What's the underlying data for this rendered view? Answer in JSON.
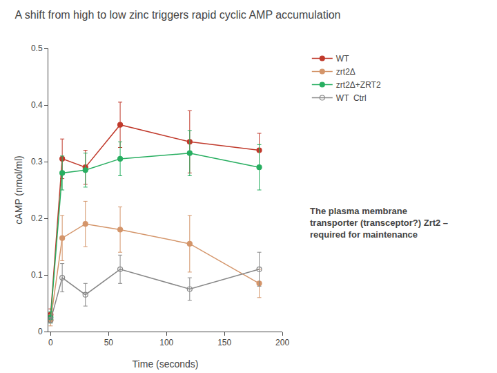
{
  "chart_data": {
    "type": "line",
    "title": "A shift from high to low zinc triggers rapid cyclic AMP accumulation",
    "x_label": "Time (seconds)",
    "y_label": "cAMP (nmol/ml)",
    "x": [
      0,
      10,
      30,
      60,
      120,
      180
    ],
    "xlim": [
      -2,
      200
    ],
    "xticks": [
      0,
      50,
      100,
      150,
      200
    ],
    "ylim": [
      0.0,
      0.5
    ],
    "yticks": [
      0.0,
      0.1,
      0.2,
      0.3,
      0.4,
      0.5
    ],
    "grid": false,
    "legend": "upper right",
    "series": [
      {
        "name": "WT",
        "color": "#c0392b",
        "marker": "circle",
        "values": [
          0.03,
          0.305,
          0.29,
          0.365,
          0.335,
          0.32
        ],
        "errors": [
          0.01,
          0.035,
          0.03,
          0.04,
          0.055,
          0.03
        ]
      },
      {
        "name": "zrt2Δ",
        "color": "#d4956a",
        "marker": "circle",
        "values": [
          0.02,
          0.165,
          0.19,
          0.18,
          0.155,
          0.085
        ],
        "errors": [
          0.01,
          0.04,
          0.04,
          0.04,
          0.05,
          0.025
        ]
      },
      {
        "name": "zrt2Δ+ZRT2",
        "color": "#27ae60",
        "marker": "circle",
        "values": [
          0.025,
          0.28,
          0.285,
          0.305,
          0.315,
          0.29
        ],
        "errors": [
          0.01,
          0.03,
          0.03,
          0.03,
          0.04,
          0.04
        ]
      },
      {
        "name": "WT  Ctrl",
        "color": "#888888",
        "marker": "circle-open",
        "values": [
          0.02,
          0.095,
          0.065,
          0.11,
          0.075,
          0.11
        ],
        "errors": [
          0.005,
          0.025,
          0.02,
          0.025,
          0.02,
          0.03
        ]
      }
    ],
    "annotation": "The plasma membrane\ntransporter (transceptor?) Zrt2 –\nrequired for maintenance"
  }
}
